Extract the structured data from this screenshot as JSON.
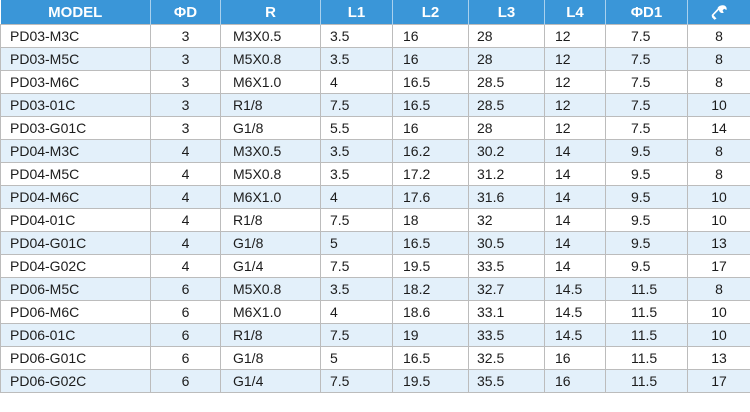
{
  "table": {
    "headers": [
      "MODEL",
      "ΦD",
      "R",
      "L1",
      "L2",
      "L3",
      "L4",
      "ΦD1"
    ],
    "last_header_icon": "wrench-icon",
    "rows": [
      [
        "PD03-M3C",
        "3",
        "M3X0.5",
        "3.5",
        "16",
        "28",
        "12",
        "7.5",
        "8"
      ],
      [
        "PD03-M5C",
        "3",
        "M5X0.8",
        "3.5",
        "16",
        "28",
        "12",
        "7.5",
        "8"
      ],
      [
        "PD03-M6C",
        "3",
        "M6X1.0",
        "4",
        "16.5",
        "28.5",
        "12",
        "7.5",
        "8"
      ],
      [
        "PD03-01C",
        "3",
        "R1/8",
        "7.5",
        "16.5",
        "28.5",
        "12",
        "7.5",
        "10"
      ],
      [
        "PD03-G01C",
        "3",
        "G1/8",
        "5.5",
        "16",
        "28",
        "12",
        "7.5",
        "14"
      ],
      [
        "PD04-M3C",
        "4",
        "M3X0.5",
        "3.5",
        "16.2",
        "30.2",
        "14",
        "9.5",
        "8"
      ],
      [
        "PD04-M5C",
        "4",
        "M5X0.8",
        "3.5",
        "17.2",
        "31.2",
        "14",
        "9.5",
        "8"
      ],
      [
        "PD04-M6C",
        "4",
        "M6X1.0",
        "4",
        "17.6",
        "31.6",
        "14",
        "9.5",
        "10"
      ],
      [
        "PD04-01C",
        "4",
        "R1/8",
        "7.5",
        "18",
        "32",
        "14",
        "9.5",
        "10"
      ],
      [
        "PD04-G01C",
        "4",
        "G1/8",
        "5",
        "16.5",
        "30.5",
        "14",
        "9.5",
        "13"
      ],
      [
        "PD04-G02C",
        "4",
        "G1/4",
        "7.5",
        "19.5",
        "33.5",
        "14",
        "9.5",
        "17"
      ],
      [
        "PD06-M5C",
        "6",
        "M5X0.8",
        "3.5",
        "18.2",
        "32.7",
        "14.5",
        "11.5",
        "8"
      ],
      [
        "PD06-M6C",
        "6",
        "M6X1.0",
        "4",
        "18.6",
        "33.1",
        "14.5",
        "11.5",
        "10"
      ],
      [
        "PD06-01C",
        "6",
        "R1/8",
        "7.5",
        "19",
        "33.5",
        "14.5",
        "11.5",
        "10"
      ],
      [
        "PD06-G01C",
        "6",
        "G1/8",
        "5",
        "16.5",
        "32.5",
        "16",
        "11.5",
        "13"
      ],
      [
        "PD06-G02C",
        "6",
        "G1/4",
        "7.5",
        "19.5",
        "35.5",
        "16",
        "11.5",
        "17"
      ]
    ]
  },
  "colors": {
    "header_bg": "#3a96d8",
    "header_text": "#ffffff",
    "stripe_bg": "#e3f0fa",
    "grid_line": "#bcbcbc"
  }
}
